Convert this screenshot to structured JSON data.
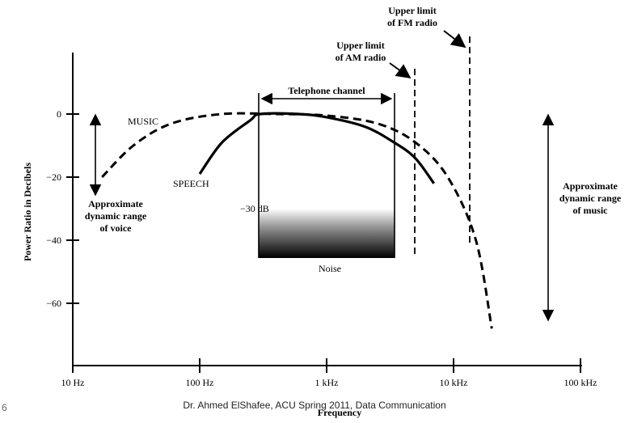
{
  "chart_data": {
    "type": "line",
    "xlabel": "Frequency",
    "ylabel": "Power Ratio in Decibels",
    "x_scale": "log",
    "x_ticks": [
      "10 Hz",
      "100 Hz",
      "1 kHz",
      "10 kHz",
      "100 kHz"
    ],
    "y_ticks": [
      "0",
      "-20",
      "-40",
      "-60"
    ],
    "series": [
      {
        "name": "MUSIC",
        "style": "dashed",
        "points": [
          [
            17,
            -20
          ],
          [
            30,
            -10
          ],
          [
            60,
            -3
          ],
          [
            150,
            0
          ],
          [
            400,
            0
          ],
          [
            1000,
            -0.5
          ],
          [
            2500,
            -3
          ],
          [
            5000,
            -9
          ],
          [
            9000,
            -20
          ],
          [
            15000,
            -40
          ],
          [
            20000,
            -68
          ]
        ]
      },
      {
        "name": "SPEECH",
        "style": "solid",
        "points": [
          [
            100,
            -19
          ],
          [
            150,
            -9
          ],
          [
            250,
            -2
          ],
          [
            300,
            0
          ],
          [
            600,
            0
          ],
          [
            1000,
            -1
          ],
          [
            2000,
            -4
          ],
          [
            3400,
            -9
          ],
          [
            5000,
            -14
          ],
          [
            7000,
            -22
          ]
        ]
      }
    ],
    "annotations": {
      "telephone_channel": "Telephone channel",
      "am_limit": "Upper limit\nof AM radio",
      "fm_limit": "Upper limit\nof FM radio",
      "voice_range": "Approximate\ndynamic range\nof voice",
      "music_range": "Approximate\ndynamic range\nof music",
      "noise_level": "−30 dB",
      "noise": "Noise"
    }
  },
  "footer": {
    "slide_number": "6",
    "text": "Dr. Ahmed ElShafee, ACU Spring 2011, Data Communication"
  }
}
